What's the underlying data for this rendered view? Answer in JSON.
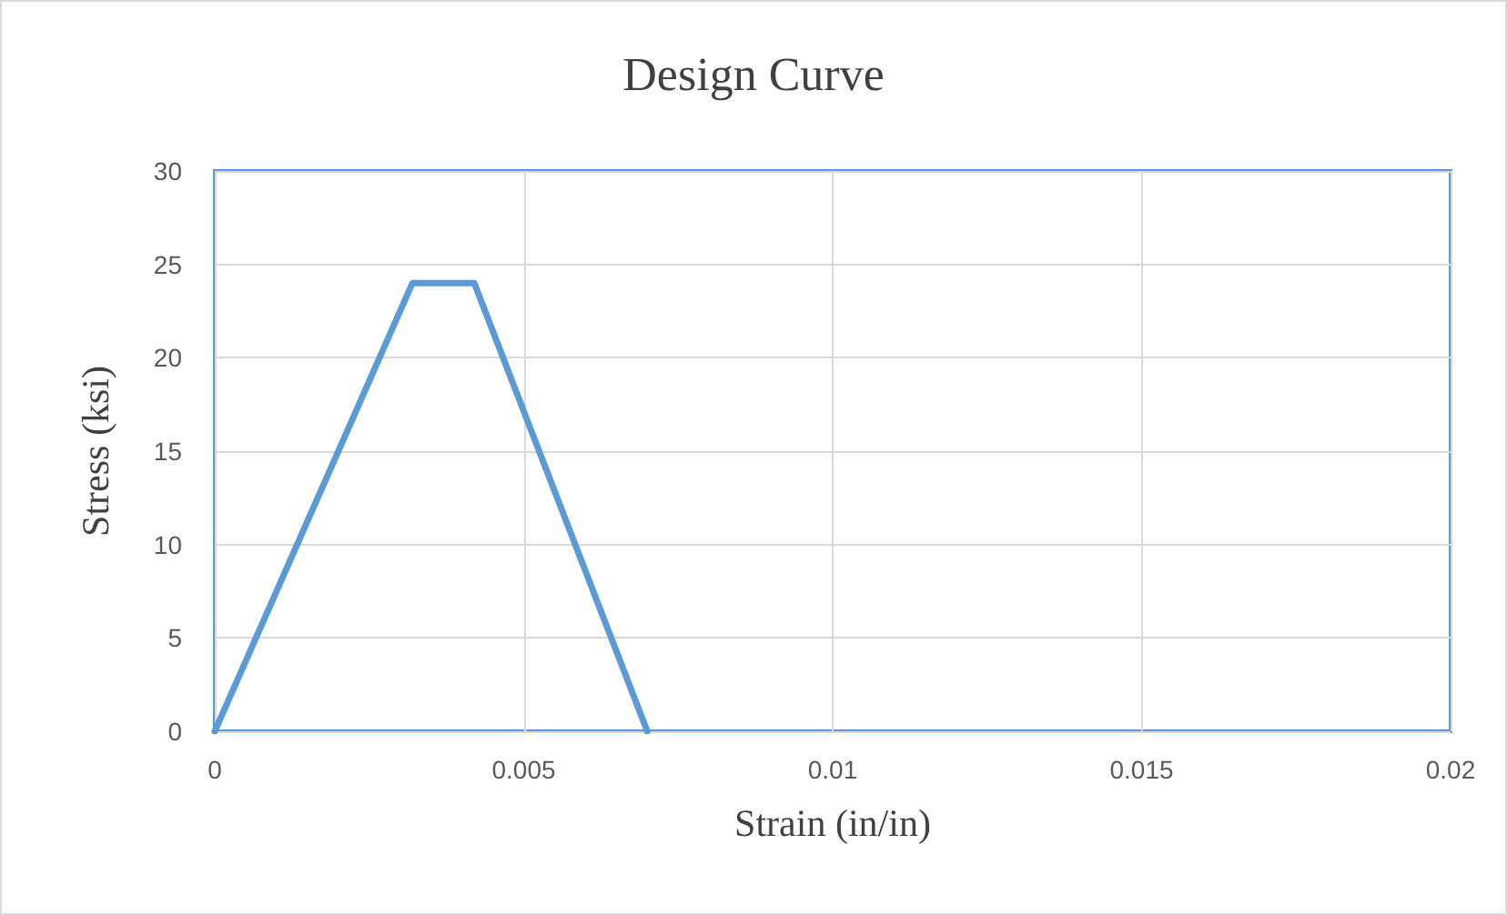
{
  "chart_data": {
    "type": "line",
    "title": "Design Curve",
    "xlabel": "Strain (in/in)",
    "ylabel": "Stress (ksi)",
    "x": [
      0,
      0.0032,
      0.0042,
      0.007
    ],
    "series": [
      {
        "color": "#5b9bd5",
        "values": [
          0,
          24,
          24,
          0
        ]
      }
    ],
    "xlim": [
      0,
      0.02
    ],
    "xticks": [
      0,
      0.005,
      0.01,
      0.015,
      0.02
    ],
    "ylim": [
      0,
      30
    ],
    "yticks": [
      0,
      5,
      10,
      15,
      20,
      25,
      30
    ],
    "grid": true,
    "marker": "none",
    "line_style": "solid"
  }
}
